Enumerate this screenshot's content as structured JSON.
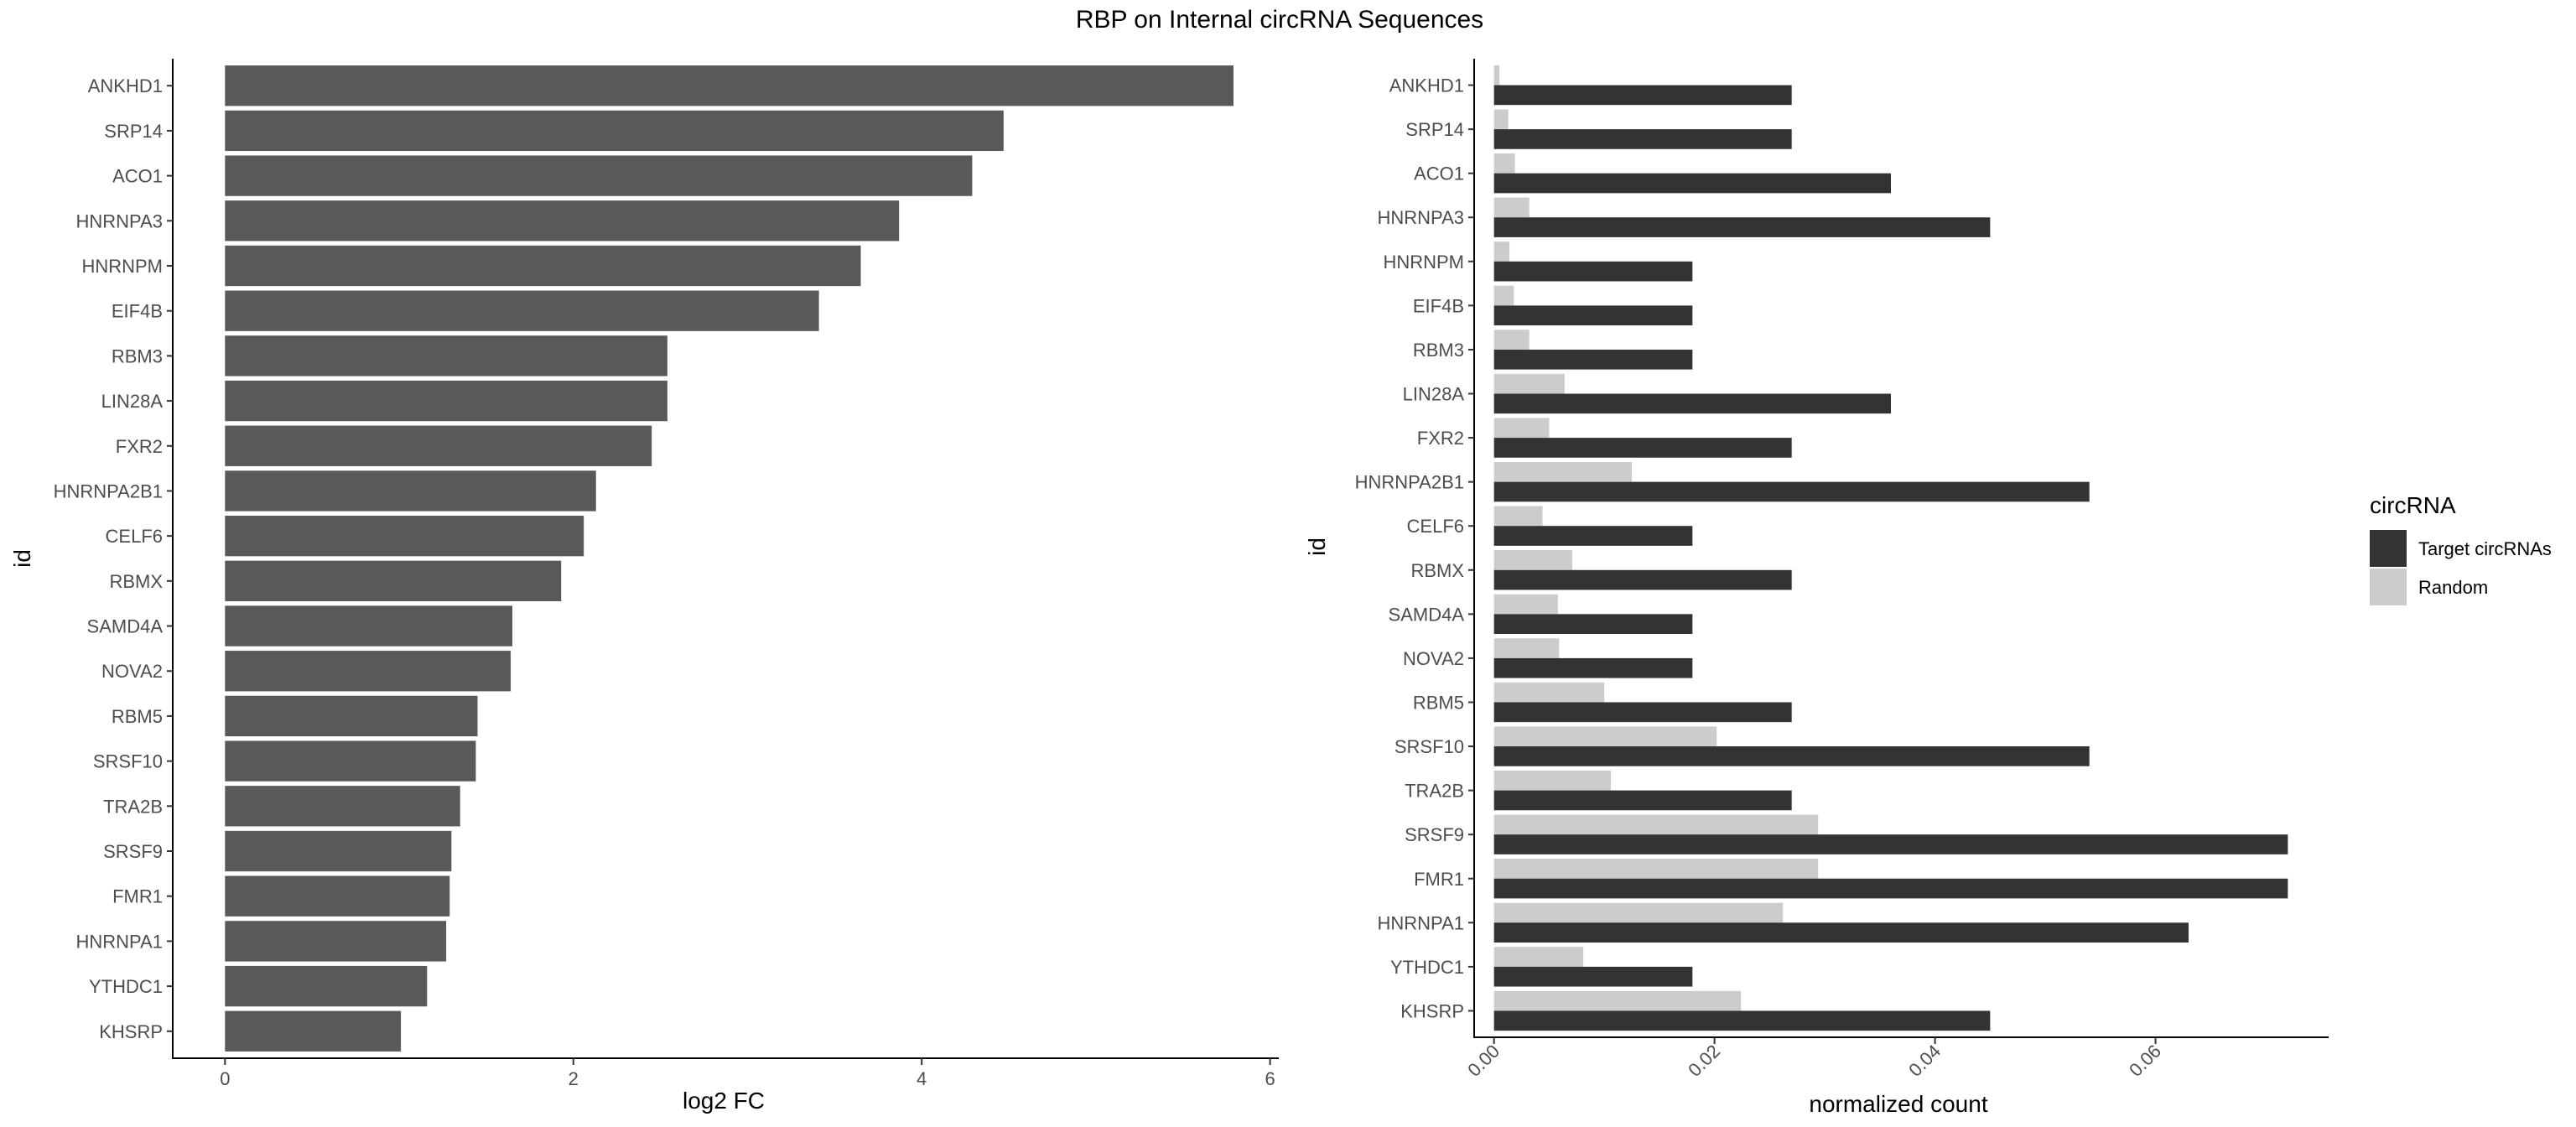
{
  "title": "RBP on Internal circRNA Sequences",
  "left_chart": {
    "ylabel": "id",
    "xlabel": "log2 FC",
    "x_ticks": [
      "0",
      "2",
      "4",
      "6"
    ]
  },
  "right_chart": {
    "ylabel": "id",
    "xlabel": "normalized count",
    "x_ticks": [
      "0.00",
      "0.02",
      "0.04",
      "0.06"
    ]
  },
  "legend": {
    "title": "circRNA",
    "items": [
      "Target circRNAs",
      "Random"
    ]
  },
  "colors": {
    "bar_left": "#595959",
    "target": "#333333",
    "random": "#cccccc",
    "tick_text": "#4d4d4d"
  },
  "chart_data": [
    {
      "type": "bar",
      "orientation": "horizontal",
      "title": "RBP on Internal circRNA Sequences",
      "xlabel": "log2 FC",
      "ylabel": "id",
      "xlim": [
        -0.3,
        6.05
      ],
      "grid": false,
      "categories": [
        "ANKHD1",
        "SRP14",
        "ACO1",
        "HNRNPA3",
        "HNRNPM",
        "EIF4B",
        "RBM3",
        "LIN28A",
        "FXR2",
        "HNRNPA2B1",
        "CELF6",
        "RBMX",
        "SAMD4A",
        "NOVA2",
        "RBM5",
        "SRSF10",
        "TRA2B",
        "SRSF9",
        "FMR1",
        "HNRNPA1",
        "YTHDC1",
        "KHSRP"
      ],
      "values": [
        5.79,
        4.47,
        4.29,
        3.87,
        3.65,
        3.41,
        2.54,
        2.54,
        2.45,
        2.13,
        2.06,
        1.93,
        1.65,
        1.64,
        1.45,
        1.44,
        1.35,
        1.3,
        1.29,
        1.27,
        1.16,
        1.01
      ]
    },
    {
      "type": "bar",
      "orientation": "horizontal",
      "xlabel": "normalized count",
      "ylabel": "id",
      "xlim": [
        -0.0018,
        0.0757
      ],
      "grid": false,
      "legend_position": "right",
      "categories": [
        "ANKHD1",
        "SRP14",
        "ACO1",
        "HNRNPA3",
        "HNRNPM",
        "EIF4B",
        "RBM3",
        "LIN28A",
        "FXR2",
        "HNRNPA2B1",
        "CELF6",
        "RBMX",
        "SAMD4A",
        "NOVA2",
        "RBM5",
        "SRSF10",
        "TRA2B",
        "SRSF9",
        "FMR1",
        "HNRNPA1",
        "YTHDC1",
        "KHSRP"
      ],
      "series": [
        {
          "name": "Target circRNAs",
          "values": [
            0.027,
            0.027,
            0.036,
            0.045,
            0.018,
            0.018,
            0.018,
            0.036,
            0.027,
            0.054,
            0.018,
            0.027,
            0.018,
            0.018,
            0.027,
            0.054,
            0.027,
            0.072,
            0.072,
            0.063,
            0.018,
            0.045
          ]
        },
        {
          "name": "Random",
          "values": [
            0.0005,
            0.0013,
            0.0019,
            0.0032,
            0.0014,
            0.0018,
            0.0032,
            0.0064,
            0.005,
            0.0125,
            0.0044,
            0.0071,
            0.0058,
            0.0059,
            0.01,
            0.0202,
            0.0106,
            0.0294,
            0.0294,
            0.0262,
            0.0081,
            0.0224
          ]
        }
      ]
    }
  ]
}
